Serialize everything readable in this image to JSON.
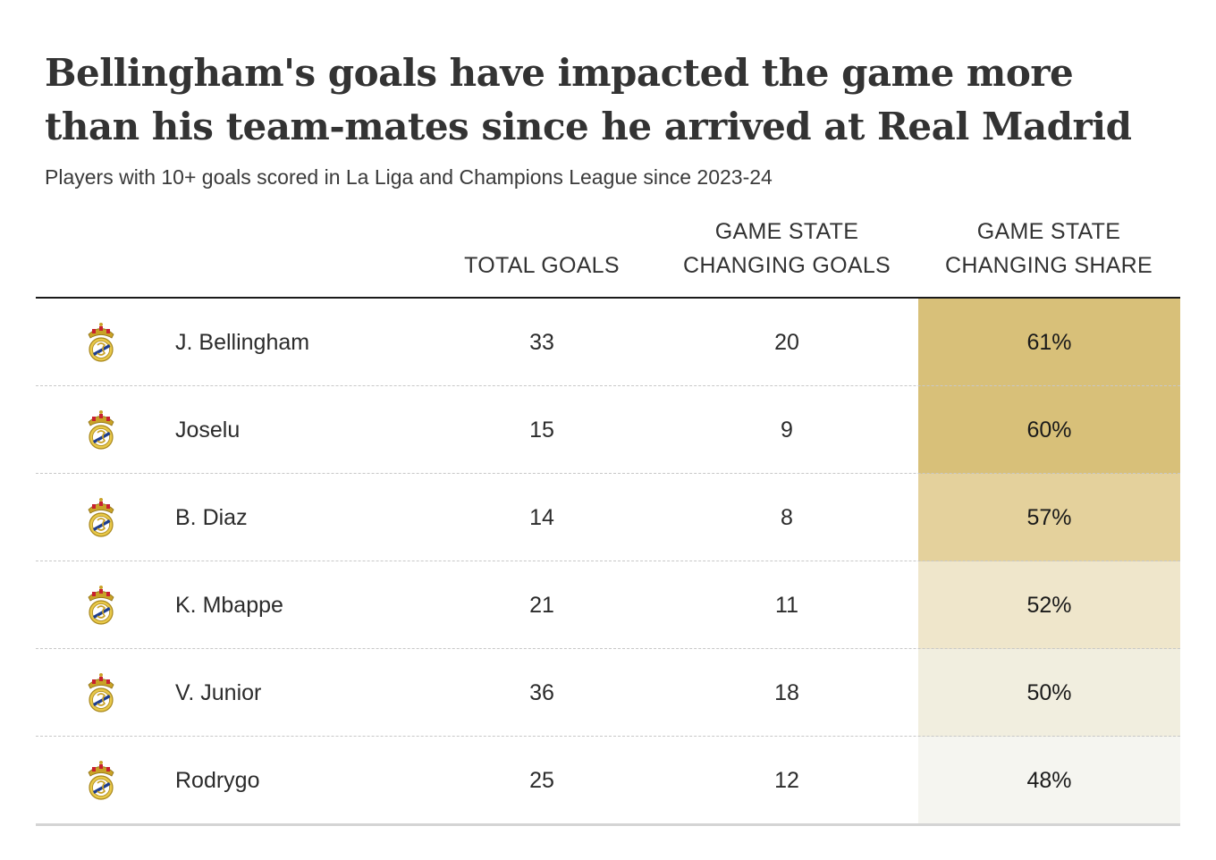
{
  "chart_data": {
    "type": "table",
    "title": "Bellingham's goals have impacted the game more than his team-mates since he arrived at Real Madrid",
    "subtitle": "Players with 10+ goals scored in La Liga and Champions League since 2023-24",
    "columns": {
      "total": "TOTAL GOALS",
      "gsc_line1": "GAME STATE",
      "gsc_line2": "CHANGING GOALS",
      "share_line1": "GAME STATE",
      "share_line2": "CHANGING SHARE"
    },
    "rows": [
      {
        "player": "J. Bellingham",
        "total_goals": "33",
        "gsc_goals": "20",
        "share": "61%",
        "share_value": 61,
        "cell_color": "#d8c079"
      },
      {
        "player": "Joselu",
        "total_goals": "15",
        "gsc_goals": "9",
        "share": "60%",
        "share_value": 60,
        "cell_color": "#d8c079"
      },
      {
        "player": "B. Diaz",
        "total_goals": "14",
        "gsc_goals": "8",
        "share": "57%",
        "share_value": 57,
        "cell_color": "#e4d19c"
      },
      {
        "player": "K. Mbappe",
        "total_goals": "21",
        "gsc_goals": "11",
        "share": "52%",
        "share_value": 52,
        "cell_color": "#efe6cb"
      },
      {
        "player": "V. Junior",
        "total_goals": "36",
        "gsc_goals": "18",
        "share": "50%",
        "share_value": 50,
        "cell_color": "#f1eedf"
      },
      {
        "player": "Rodrygo",
        "total_goals": "25",
        "gsc_goals": "12",
        "share": "48%",
        "share_value": 48,
        "cell_color": "#f5f5f0"
      }
    ],
    "team_icon": "real-madrid-crest-icon"
  }
}
